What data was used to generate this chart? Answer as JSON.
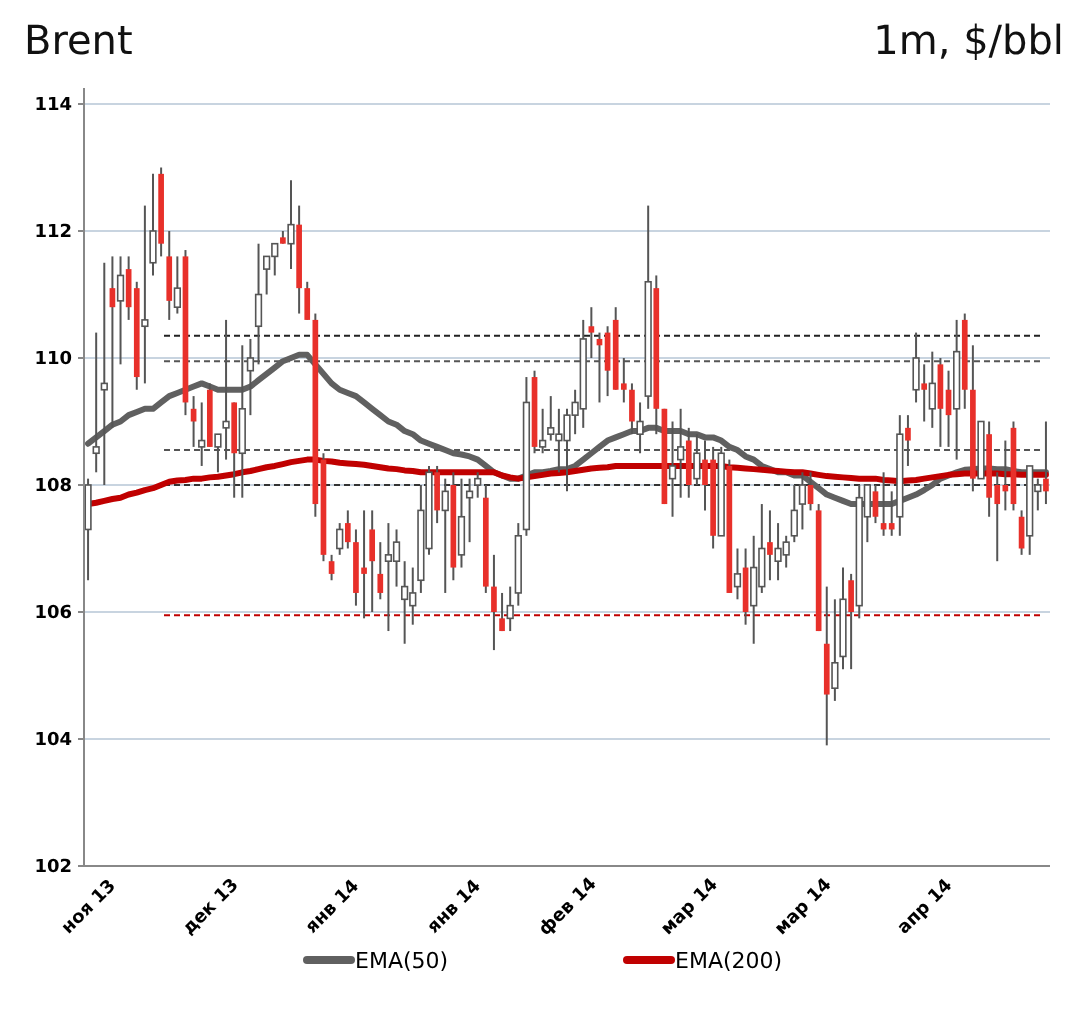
{
  "chart_data": {
    "type": "candlestick",
    "title": "Brent",
    "subtitle": "1m, $/bbl",
    "categories": [
      "ноя 13",
      null,
      null,
      null,
      null,
      null,
      null,
      null,
      null,
      null,
      null,
      null,
      null,
      null,
      null,
      "дек 13",
      null,
      null,
      null,
      null,
      null,
      null,
      null,
      null,
      null,
      null,
      null,
      null,
      null,
      null,
      "янв 14",
      null,
      null,
      null,
      null,
      null,
      null,
      null,
      null,
      null,
      null,
      null,
      null,
      null,
      null,
      "янв 14",
      null,
      null,
      null,
      null,
      null,
      null,
      null,
      null,
      null,
      null,
      null,
      null,
      null,
      "фев 14",
      null,
      null,
      null,
      null,
      null,
      null,
      null,
      null,
      null,
      null,
      null,
      null,
      null,
      null,
      "мар 14",
      null,
      null,
      null,
      null,
      null,
      null,
      null,
      null,
      null,
      null,
      null,
      null,
      null,
      "мар 14",
      null,
      null,
      null,
      null,
      null,
      null,
      null,
      null,
      null,
      null,
      null,
      null,
      null,
      null,
      "апр 14",
      null,
      null,
      null,
      null,
      null,
      null,
      null,
      null,
      null,
      null,
      null,
      null,
      null,
      null,
      null
    ],
    "colors": [
      "#ffffff",
      "#ffffff",
      "#ffffff",
      "#e8302a",
      "#ffffff",
      "#e8302a",
      "#e8302a",
      "#ffffff",
      "#ffffff",
      "#e8302a",
      "#e8302a",
      "#ffffff",
      "#e8302a",
      "#e8302a",
      "#ffffff",
      "#e8302a",
      "#ffffff",
      "#ffffff",
      "#e8302a",
      "#ffffff",
      "#ffffff",
      "#ffffff",
      "#ffffff",
      "#ffffff",
      "#e8302a",
      "#ffffff",
      "#e8302a",
      "#e8302a",
      "#e8302a",
      "#e8302a",
      "#e8302a",
      "#ffffff",
      "#e8302a",
      "#e8302a",
      "#e8302a",
      "#e8302a",
      "#e8302a",
      "#ffffff",
      "#ffffff",
      "#ffffff",
      "#ffffff",
      "#ffffff",
      "#ffffff",
      "#e8302a",
      "#ffffff",
      "#e8302a",
      "#ffffff",
      "#ffffff",
      "#ffffff",
      "#e8302a",
      "#e8302a",
      "#e8302a",
      "#ffffff",
      "#ffffff",
      "#ffffff",
      "#e8302a",
      "#ffffff",
      "#ffffff",
      "#ffffff",
      "#ffffff",
      "#ffffff",
      "#ffffff",
      "#e8302a",
      "#e8302a",
      "#e8302a",
      "#e8302a",
      "#e8302a",
      "#e8302a",
      "#ffffff",
      "#ffffff",
      "#e8302a",
      "#e8302a",
      "#ffffff",
      "#ffffff",
      "#e8302a",
      "#ffffff",
      "#e8302a",
      "#e8302a",
      "#ffffff",
      "#e8302a",
      "#ffffff",
      "#e8302a",
      "#ffffff",
      "#ffffff",
      "#e8302a",
      "#ffffff",
      "#ffffff",
      "#ffffff",
      "#ffffff",
      "#e8302a",
      "#e8302a",
      "#e8302a",
      "#ffffff",
      "#ffffff",
      "#e8302a",
      "#ffffff",
      "#ffffff",
      "#e8302a",
      "#e8302a",
      "#e8302a",
      "#ffffff",
      "#e8302a",
      "#ffffff",
      "#e8302a",
      "#ffffff",
      "#e8302a",
      "#e8302a",
      "#ffffff",
      "#e8302a",
      "#e8302a",
      "#ffffff",
      "#e8302a",
      "#e8302a",
      "#e8302a",
      "#e8302a",
      "#e8302a",
      "#ffffff",
      "#ffffff",
      "#e8302a"
    ],
    "ohlc": [
      [
        107.3,
        108.1,
        106.5,
        108.0
      ],
      [
        108.5,
        110.4,
        108.2,
        108.6
      ],
      [
        109.5,
        111.5,
        108.0,
        109.6
      ],
      [
        111.1,
        111.6,
        108.9,
        110.8
      ],
      [
        110.9,
        111.6,
        109.9,
        111.3
      ],
      [
        111.4,
        111.6,
        110.6,
        110.8
      ],
      [
        111.1,
        111.2,
        109.5,
        109.7
      ],
      [
        110.5,
        112.4,
        109.6,
        110.6
      ],
      [
        111.5,
        112.9,
        111.3,
        112.0
      ],
      [
        112.9,
        113.0,
        111.6,
        111.8
      ],
      [
        111.6,
        112.0,
        110.6,
        110.9
      ],
      [
        110.8,
        111.6,
        110.7,
        111.1
      ],
      [
        111.6,
        111.7,
        109.1,
        109.3
      ],
      [
        109.2,
        109.4,
        108.6,
        109.0
      ],
      [
        108.6,
        109.3,
        108.3,
        108.7
      ],
      [
        109.5,
        109.6,
        108.6,
        108.6
      ],
      [
        108.6,
        108.8,
        108.2,
        108.8
      ],
      [
        108.9,
        110.6,
        108.4,
        109.0
      ],
      [
        109.3,
        109.3,
        107.8,
        108.5
      ],
      [
        108.5,
        110.2,
        107.8,
        109.2
      ],
      [
        109.8,
        110.3,
        109.1,
        110.0
      ],
      [
        110.5,
        111.8,
        109.9,
        111.0
      ],
      [
        111.4,
        111.6,
        111.0,
        111.6
      ],
      [
        111.6,
        111.8,
        111.3,
        111.8
      ],
      [
        111.9,
        112.0,
        111.8,
        111.8
      ],
      [
        111.8,
        112.8,
        111.4,
        112.1
      ],
      [
        112.1,
        112.4,
        110.7,
        111.1
      ],
      [
        111.1,
        111.2,
        110.6,
        110.6
      ],
      [
        110.6,
        110.7,
        107.5,
        107.7
      ],
      [
        108.4,
        108.5,
        106.8,
        106.9
      ],
      [
        106.8,
        106.9,
        106.5,
        106.6
      ],
      [
        107.0,
        107.4,
        106.9,
        107.3
      ],
      [
        107.4,
        107.6,
        107.0,
        107.1
      ],
      [
        107.1,
        107.3,
        106.1,
        106.3
      ],
      [
        106.7,
        107.6,
        105.9,
        106.6
      ],
      [
        107.3,
        107.6,
        106.0,
        106.8
      ],
      [
        106.6,
        107.1,
        106.2,
        106.3
      ],
      [
        106.8,
        107.4,
        105.7,
        106.9
      ],
      [
        106.8,
        107.3,
        106.4,
        107.1
      ],
      [
        106.2,
        106.8,
        105.5,
        106.4
      ],
      [
        106.1,
        106.7,
        105.8,
        106.3
      ],
      [
        106.5,
        108.0,
        106.3,
        107.6
      ],
      [
        107.0,
        108.3,
        106.9,
        108.2
      ],
      [
        108.2,
        108.3,
        107.4,
        107.6
      ],
      [
        107.6,
        108.1,
        106.3,
        107.9
      ],
      [
        108.0,
        108.2,
        106.5,
        106.7
      ],
      [
        106.9,
        108.1,
        106.7,
        107.5
      ],
      [
        107.8,
        108.1,
        107.1,
        107.9
      ],
      [
        108.0,
        108.2,
        107.8,
        108.1
      ],
      [
        107.8,
        108.0,
        106.3,
        106.4
      ],
      [
        106.4,
        106.9,
        105.4,
        106.0
      ],
      [
        105.9,
        106.3,
        105.7,
        105.7
      ],
      [
        105.9,
        106.4,
        105.7,
        106.1
      ],
      [
        106.3,
        107.4,
        106.1,
        107.2
      ],
      [
        107.3,
        109.7,
        107.2,
        109.3
      ],
      [
        109.7,
        109.8,
        108.5,
        108.6
      ],
      [
        108.6,
        109.2,
        108.5,
        108.7
      ],
      [
        108.8,
        109.4,
        108.7,
        108.9
      ],
      [
        108.7,
        109.2,
        108.2,
        108.8
      ],
      [
        108.7,
        109.2,
        107.9,
        109.1
      ],
      [
        109.1,
        109.5,
        108.8,
        109.3
      ],
      [
        109.2,
        110.6,
        108.9,
        110.3
      ],
      [
        110.5,
        110.8,
        110.0,
        110.4
      ],
      [
        110.3,
        110.4,
        109.3,
        110.2
      ],
      [
        110.4,
        110.5,
        109.4,
        109.8
      ],
      [
        110.6,
        110.8,
        109.5,
        109.5
      ],
      [
        109.6,
        110.0,
        109.3,
        109.5
      ],
      [
        109.5,
        109.6,
        108.8,
        109.0
      ],
      [
        108.8,
        109.3,
        108.5,
        109.0
      ],
      [
        109.4,
        112.4,
        109.2,
        111.2
      ],
      [
        111.1,
        111.3,
        108.8,
        109.2
      ],
      [
        109.2,
        109.2,
        107.7,
        107.7
      ],
      [
        108.1,
        109.0,
        107.5,
        108.3
      ],
      [
        108.4,
        109.2,
        107.8,
        108.6
      ],
      [
        108.7,
        108.9,
        107.8,
        108.0
      ],
      [
        108.1,
        108.8,
        108.0,
        108.5
      ],
      [
        108.4,
        108.7,
        107.6,
        108.0
      ],
      [
        108.4,
        108.6,
        107.0,
        107.2
      ],
      [
        107.2,
        108.6,
        107.2,
        108.5
      ],
      [
        108.3,
        108.4,
        106.3,
        106.3
      ],
      [
        106.4,
        107.0,
        106.2,
        106.6
      ],
      [
        106.7,
        107.0,
        105.8,
        106.0
      ],
      [
        106.1,
        107.2,
        105.5,
        106.7
      ],
      [
        106.4,
        107.7,
        106.3,
        107.0
      ],
      [
        107.1,
        107.6,
        106.5,
        106.9
      ],
      [
        106.8,
        107.4,
        106.5,
        107.0
      ],
      [
        106.9,
        107.2,
        106.7,
        107.1
      ],
      [
        107.2,
        108.0,
        107.1,
        107.6
      ],
      [
        107.7,
        108.2,
        107.3,
        108.0
      ],
      [
        108.0,
        108.2,
        107.6,
        107.7
      ],
      [
        107.6,
        107.7,
        105.7,
        105.7
      ],
      [
        105.5,
        106.4,
        103.9,
        104.7
      ],
      [
        104.8,
        106.2,
        104.6,
        105.2
      ],
      [
        105.3,
        106.7,
        105.1,
        106.2
      ],
      [
        106.5,
        106.6,
        105.1,
        106.0
      ],
      [
        106.1,
        108.0,
        105.9,
        107.8
      ],
      [
        107.5,
        108.0,
        107.1,
        108.0
      ],
      [
        107.9,
        108.0,
        107.4,
        107.5
      ],
      [
        107.4,
        108.2,
        107.2,
        107.3
      ],
      [
        107.4,
        107.9,
        107.2,
        107.3
      ],
      [
        107.5,
        109.1,
        107.2,
        108.8
      ],
      [
        108.9,
        109.1,
        108.3,
        108.7
      ],
      [
        109.5,
        110.4,
        109.3,
        110.0
      ],
      [
        109.6,
        109.9,
        109.0,
        109.5
      ],
      [
        109.2,
        110.1,
        108.9,
        109.6
      ],
      [
        109.9,
        110.0,
        108.6,
        109.2
      ],
      [
        109.5,
        109.8,
        108.6,
        109.1
      ],
      [
        109.2,
        110.6,
        108.4,
        110.1
      ],
      [
        110.6,
        110.7,
        109.2,
        109.5
      ],
      [
        109.5,
        110.2,
        107.9,
        108.1
      ],
      [
        108.1,
        109.0,
        108.1,
        109.0
      ],
      [
        108.8,
        109.0,
        107.5,
        107.8
      ],
      [
        108.0,
        108.2,
        106.8,
        107.7
      ],
      [
        108.0,
        108.7,
        107.6,
        107.9
      ],
      [
        108.9,
        109.0,
        107.6,
        107.7
      ],
      [
        107.5,
        107.6,
        106.9,
        107.0
      ],
      [
        107.2,
        108.3,
        106.9,
        108.3
      ],
      [
        107.9,
        108.1,
        107.6,
        108.0
      ],
      [
        108.1,
        109.0,
        107.7,
        107.9
      ]
    ],
    "series": [
      {
        "type": "line",
        "name": "EMA(50)",
        "color": "#606060",
        "values": [
          108.65,
          108.75,
          108.85,
          108.95,
          109.0,
          109.1,
          109.15,
          109.2,
          109.2,
          109.3,
          109.4,
          109.45,
          109.5,
          109.55,
          109.6,
          109.55,
          109.5,
          109.5,
          109.5,
          109.5,
          109.55,
          109.65,
          109.75,
          109.85,
          109.95,
          110.0,
          110.05,
          110.05,
          109.9,
          109.75,
          109.6,
          109.5,
          109.45,
          109.4,
          109.3,
          109.2,
          109.1,
          109.0,
          108.95,
          108.85,
          108.8,
          108.7,
          108.65,
          108.6,
          108.55,
          108.5,
          108.48,
          108.45,
          108.4,
          108.3,
          108.2,
          108.15,
          108.1,
          108.1,
          108.15,
          108.2,
          108.2,
          108.22,
          108.25,
          108.25,
          108.3,
          108.4,
          108.5,
          108.6,
          108.7,
          108.75,
          108.8,
          108.85,
          108.85,
          108.9,
          108.9,
          108.85,
          108.85,
          108.85,
          108.8,
          108.8,
          108.75,
          108.75,
          108.7,
          108.6,
          108.55,
          108.45,
          108.4,
          108.3,
          108.25,
          108.2,
          108.2,
          108.15,
          108.15,
          108.05,
          107.95,
          107.85,
          107.8,
          107.75,
          107.7,
          107.7,
          107.7,
          107.7,
          107.7,
          107.7,
          107.75,
          107.8,
          107.85,
          107.92,
          108.0,
          108.1,
          108.15,
          108.2,
          108.24,
          108.25,
          108.26,
          108.26,
          108.25,
          108.25,
          108.22,
          108.2,
          108.2,
          108.2,
          108.2
        ]
      },
      {
        "type": "line",
        "name": "EMA(200)",
        "color": "#c00000",
        "values": [
          107.7,
          107.72,
          107.75,
          107.78,
          107.8,
          107.85,
          107.88,
          107.92,
          107.95,
          108.0,
          108.05,
          108.07,
          108.08,
          108.1,
          108.1,
          108.12,
          108.13,
          108.15,
          108.17,
          108.2,
          108.22,
          108.25,
          108.28,
          108.3,
          108.33,
          108.36,
          108.38,
          108.4,
          108.4,
          108.38,
          108.37,
          108.35,
          108.34,
          108.33,
          108.32,
          108.3,
          108.28,
          108.26,
          108.25,
          108.23,
          108.22,
          108.2,
          108.2,
          108.2,
          108.2,
          108.2,
          108.2,
          108.2,
          108.2,
          108.2,
          108.2,
          108.15,
          108.12,
          108.1,
          108.12,
          108.14,
          108.16,
          108.18,
          108.19,
          108.2,
          108.22,
          108.24,
          108.26,
          108.27,
          108.28,
          108.3,
          108.3,
          108.3,
          108.3,
          108.3,
          108.3,
          108.3,
          108.3,
          108.3,
          108.3,
          108.3,
          108.3,
          108.3,
          108.3,
          108.28,
          108.27,
          108.26,
          108.25,
          108.24,
          108.23,
          108.22,
          108.21,
          108.2,
          108.2,
          108.18,
          108.16,
          108.14,
          108.13,
          108.12,
          108.11,
          108.1,
          108.1,
          108.1,
          108.08,
          108.07,
          108.06,
          108.07,
          108.08,
          108.1,
          108.12,
          108.14,
          108.16,
          108.17,
          108.18,
          108.18,
          108.18,
          108.18,
          108.18,
          108.17,
          108.17,
          108.16,
          108.16,
          108.16,
          108.16
        ]
      }
    ],
    "ref_lines": [
      {
        "axis": "y",
        "value": 110.35,
        "color": "#222222",
        "line_style": "dashed"
      },
      {
        "axis": "y",
        "value": 109.95,
        "color": "#555555",
        "line_style": "dashed"
      },
      {
        "axis": "y",
        "value": 108.55,
        "color": "#555555",
        "line_style": "dashed"
      },
      {
        "axis": "y",
        "value": 108.0,
        "color": "#333333",
        "line_style": "dashed"
      },
      {
        "axis": "y",
        "value": 105.95,
        "color": "#c00000",
        "line_style": "dashed"
      }
    ],
    "ylim": [
      102,
      114
    ],
    "yticks": [
      102,
      104,
      106,
      108,
      110,
      112,
      114
    ],
    "grid": "y",
    "legend": "bottom"
  }
}
